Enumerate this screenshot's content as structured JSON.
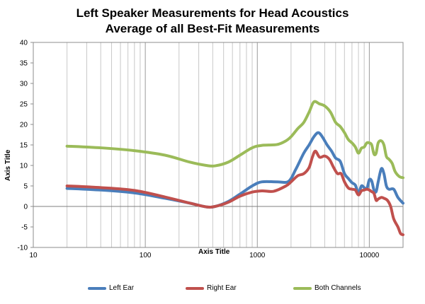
{
  "chart_data": {
    "type": "line",
    "title": "Left Speaker Measurements for Head Acoustics",
    "subtitle": "Average of all Best-Fit Measurements",
    "xlabel": "Axis Title",
    "ylabel": "Axis Title",
    "xscale": "log",
    "xlim": [
      10,
      20000
    ],
    "ylim": [
      -10,
      40
    ],
    "xticks": [
      10,
      100,
      1000,
      10000
    ],
    "yticks": [
      -10,
      -5,
      0,
      5,
      10,
      15,
      20,
      25,
      30,
      35,
      40
    ],
    "grid": "vertical-log",
    "legend_position": "bottom",
    "series": [
      {
        "name": "Left Ear",
        "color": "#4a7ebb",
        "points": [
          [
            20,
            4.4
          ],
          [
            40,
            4.0
          ],
          [
            80,
            3.3
          ],
          [
            150,
            2.0
          ],
          [
            250,
            0.8
          ],
          [
            350,
            -0.1
          ],
          [
            420,
            0
          ],
          [
            550,
            1.2
          ],
          [
            700,
            3.0
          ],
          [
            900,
            5.0
          ],
          [
            1100,
            6.0
          ],
          [
            1500,
            6.0
          ],
          [
            1900,
            6.1
          ],
          [
            2200,
            9.0
          ],
          [
            2600,
            13.0
          ],
          [
            2900,
            15.0
          ],
          [
            3200,
            17.0
          ],
          [
            3500,
            18.0
          ],
          [
            3800,
            17.0
          ],
          [
            4200,
            15.0
          ],
          [
            4600,
            13.5
          ],
          [
            5000,
            11.8
          ],
          [
            5500,
            11.0
          ],
          [
            6000,
            8.0
          ],
          [
            6500,
            6.8
          ],
          [
            7000,
            5.8
          ],
          [
            7500,
            5.2
          ],
          [
            8000,
            3.2
          ],
          [
            8500,
            5.0
          ],
          [
            9000,
            4.6
          ],
          [
            9500,
            4.3
          ],
          [
            10000,
            6.5
          ],
          [
            10500,
            6.2
          ],
          [
            11000,
            4.0
          ],
          [
            11500,
            3.6
          ],
          [
            12000,
            6.0
          ],
          [
            12800,
            9.2
          ],
          [
            13500,
            8.0
          ],
          [
            14200,
            5.0
          ],
          [
            15000,
            4.2
          ],
          [
            16500,
            4.2
          ],
          [
            18000,
            2.2
          ],
          [
            20000,
            0.8
          ]
        ]
      },
      {
        "name": "Right Ear",
        "color": "#c0504d",
        "points": [
          [
            20,
            5.0
          ],
          [
            40,
            4.6
          ],
          [
            80,
            3.9
          ],
          [
            150,
            2.3
          ],
          [
            250,
            0.8
          ],
          [
            350,
            -0.1
          ],
          [
            420,
            0
          ],
          [
            550,
            1.0
          ],
          [
            700,
            2.5
          ],
          [
            900,
            3.5
          ],
          [
            1100,
            3.8
          ],
          [
            1400,
            3.7
          ],
          [
            1800,
            5.0
          ],
          [
            2000,
            6.0
          ],
          [
            2300,
            7.5
          ],
          [
            2600,
            8.0
          ],
          [
            2900,
            9.5
          ],
          [
            3100,
            12.0
          ],
          [
            3300,
            13.5
          ],
          [
            3600,
            12.0
          ],
          [
            4000,
            12.3
          ],
          [
            4400,
            11.5
          ],
          [
            4800,
            9.5
          ],
          [
            5200,
            8.0
          ],
          [
            5600,
            8.0
          ],
          [
            6000,
            6.0
          ],
          [
            6500,
            4.5
          ],
          [
            7000,
            4.2
          ],
          [
            7500,
            4.0
          ],
          [
            8000,
            2.8
          ],
          [
            8500,
            3.8
          ],
          [
            9000,
            4.0
          ],
          [
            9500,
            4.2
          ],
          [
            10000,
            4.0
          ],
          [
            10500,
            3.6
          ],
          [
            11000,
            3.2
          ],
          [
            11500,
            1.5
          ],
          [
            12000,
            1.8
          ],
          [
            12800,
            2.2
          ],
          [
            13500,
            2.0
          ],
          [
            14500,
            1.5
          ],
          [
            15500,
            0
          ],
          [
            16500,
            -3.0
          ],
          [
            18000,
            -5.0
          ],
          [
            19000,
            -6.6
          ],
          [
            20000,
            -6.9
          ]
        ]
      },
      {
        "name": "Both Channels",
        "color": "#9bbb59",
        "points": [
          [
            20,
            14.7
          ],
          [
            40,
            14.3
          ],
          [
            80,
            13.6
          ],
          [
            150,
            12.5
          ],
          [
            250,
            10.8
          ],
          [
            350,
            10.0
          ],
          [
            420,
            9.9
          ],
          [
            550,
            10.8
          ],
          [
            700,
            12.5
          ],
          [
            900,
            14.3
          ],
          [
            1100,
            14.9
          ],
          [
            1500,
            15.1
          ],
          [
            1800,
            16.0
          ],
          [
            2000,
            17.0
          ],
          [
            2300,
            19.0
          ],
          [
            2600,
            20.5
          ],
          [
            2900,
            23.0
          ],
          [
            3200,
            25.5
          ],
          [
            3600,
            25.0
          ],
          [
            4000,
            24.5
          ],
          [
            4500,
            23.0
          ],
          [
            5000,
            20.5
          ],
          [
            5500,
            19.5
          ],
          [
            6000,
            18.0
          ],
          [
            6500,
            16.3
          ],
          [
            7000,
            15.5
          ],
          [
            7500,
            14.5
          ],
          [
            8000,
            13.0
          ],
          [
            8500,
            14.2
          ],
          [
            9000,
            14.5
          ],
          [
            9500,
            15.5
          ],
          [
            10000,
            15.5
          ],
          [
            10500,
            15.0
          ],
          [
            11000,
            12.8
          ],
          [
            11500,
            13.0
          ],
          [
            12000,
            15.5
          ],
          [
            12800,
            16.0
          ],
          [
            13500,
            15.0
          ],
          [
            14200,
            12.2
          ],
          [
            15000,
            11.5
          ],
          [
            16000,
            10.5
          ],
          [
            17000,
            8.5
          ],
          [
            18500,
            7.3
          ],
          [
            20000,
            7.0
          ]
        ]
      }
    ]
  }
}
